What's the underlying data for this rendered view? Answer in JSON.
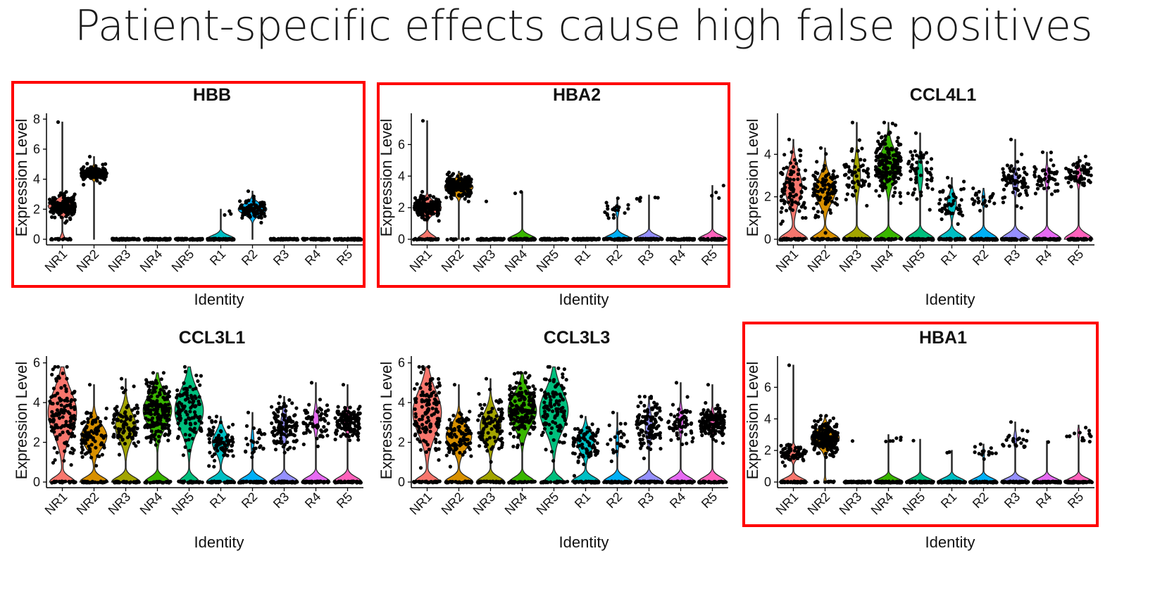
{
  "slide": {
    "title": "Patient-specific effects cause high false positives"
  },
  "colors": {
    "NR1": "#F8766D",
    "NR2": "#D89000",
    "NR3": "#A3A500",
    "NR4": "#39B600",
    "NR5": "#00BF7D",
    "R1": "#00BFC4",
    "R2": "#00B0F6",
    "R3": "#9590FF",
    "R4": "#E76BF3",
    "R5": "#FF62BC",
    "highlight": "#ff0000",
    "points": "#000000"
  },
  "chart_data": [
    {
      "type": "violin",
      "title": "HBB",
      "xlabel": "Identity",
      "ylabel": "Expression Level",
      "ylim": [
        0,
        8.2
      ],
      "yticks": [
        0,
        2,
        4,
        6,
        8
      ],
      "highlighted": true,
      "categories": [
        "NR1",
        "NR2",
        "NR3",
        "NR4",
        "NR5",
        "R1",
        "R2",
        "R3",
        "R4",
        "R5"
      ],
      "groups": [
        {
          "name": "NR1",
          "zero_frac": 0.1,
          "nz_mean": 2.2,
          "nz_sd": 0.35,
          "max": 7.8,
          "n_nz": 180
        },
        {
          "name": "NR2",
          "zero_frac": 0.0,
          "nz_mean": 4.4,
          "nz_sd": 0.22,
          "max": 5.5,
          "n_nz": 180
        },
        {
          "name": "NR3",
          "zero_frac": 1.0,
          "nz_mean": 0,
          "nz_sd": 0,
          "max": 0,
          "n_nz": 0
        },
        {
          "name": "NR4",
          "zero_frac": 1.0,
          "nz_mean": 0,
          "nz_sd": 0,
          "max": 0,
          "n_nz": 0
        },
        {
          "name": "NR5",
          "zero_frac": 1.0,
          "nz_mean": 0,
          "nz_sd": 0,
          "max": 0,
          "n_nz": 0
        },
        {
          "name": "R1",
          "zero_frac": 0.98,
          "nz_mean": 1.7,
          "nz_sd": 0.2,
          "max": 2.0,
          "n_nz": 3
        },
        {
          "name": "R2",
          "zero_frac": 0.0,
          "nz_mean": 2.0,
          "nz_sd": 0.35,
          "max": 3.2,
          "n_nz": 90
        },
        {
          "name": "R3",
          "zero_frac": 1.0,
          "nz_mean": 0,
          "nz_sd": 0,
          "max": 0,
          "n_nz": 0
        },
        {
          "name": "R4",
          "zero_frac": 1.0,
          "nz_mean": 0,
          "nz_sd": 0,
          "max": 0,
          "n_nz": 0
        },
        {
          "name": "R5",
          "zero_frac": 1.0,
          "nz_mean": 0,
          "nz_sd": 0,
          "max": 0,
          "n_nz": 0
        }
      ]
    },
    {
      "type": "violin",
      "title": "HBA2",
      "xlabel": "Identity",
      "ylabel": "Expression Level",
      "ylim": [
        0,
        7.8
      ],
      "yticks": [
        0,
        2,
        4,
        6
      ],
      "highlighted": true,
      "categories": [
        "NR1",
        "NR2",
        "NR3",
        "NR4",
        "NR5",
        "R1",
        "R2",
        "R3",
        "R4",
        "R5"
      ],
      "groups": [
        {
          "name": "NR1",
          "zero_frac": 0.3,
          "nz_mean": 2.0,
          "nz_sd": 0.35,
          "max": 7.5,
          "n_nz": 150
        },
        {
          "name": "NR2",
          "zero_frac": 0.02,
          "nz_mean": 3.3,
          "nz_sd": 0.35,
          "max": 4.3,
          "n_nz": 180
        },
        {
          "name": "NR3",
          "zero_frac": 1.0,
          "nz_mean": 0,
          "nz_sd": 0,
          "max": 2.4,
          "n_nz": 0
        },
        {
          "name": "NR4",
          "zero_frac": 0.98,
          "nz_mean": 2.9,
          "nz_sd": 0.05,
          "max": 3.0,
          "n_nz": 2
        },
        {
          "name": "NR5",
          "zero_frac": 1.0,
          "nz_mean": 0,
          "nz_sd": 0,
          "max": 0,
          "n_nz": 0
        },
        {
          "name": "R1",
          "zero_frac": 1.0,
          "nz_mean": 0,
          "nz_sd": 0,
          "max": 0,
          "n_nz": 0
        },
        {
          "name": "R2",
          "zero_frac": 0.85,
          "nz_mean": 1.8,
          "nz_sd": 0.3,
          "max": 2.6,
          "n_nz": 20
        },
        {
          "name": "R3",
          "zero_frac": 0.95,
          "nz_mean": 2.6,
          "nz_sd": 0.1,
          "max": 2.8,
          "n_nz": 6
        },
        {
          "name": "R4",
          "zero_frac": 1.0,
          "nz_mean": 0,
          "nz_sd": 0,
          "max": 0,
          "n_nz": 0
        },
        {
          "name": "R5",
          "zero_frac": 0.96,
          "nz_mean": 3.0,
          "nz_sd": 0.25,
          "max": 3.4,
          "n_nz": 4
        }
      ]
    },
    {
      "type": "violin",
      "title": "CCL4L1",
      "xlabel": "Identity",
      "ylabel": "Expression Level",
      "ylim": [
        0,
        5.8
      ],
      "yticks": [
        0,
        2,
        4
      ],
      "highlighted": false,
      "categories": [
        "NR1",
        "NR2",
        "NR3",
        "NR4",
        "NR5",
        "R1",
        "R2",
        "R3",
        "R4",
        "R5"
      ],
      "groups": [
        {
          "name": "NR1",
          "zero_frac": 0.5,
          "nz_mean": 2.5,
          "nz_sd": 0.8,
          "max": 4.7,
          "n_nz": 90
        },
        {
          "name": "NR2",
          "zero_frac": 0.45,
          "nz_mean": 2.3,
          "nz_sd": 0.6,
          "max": 4.3,
          "n_nz": 100
        },
        {
          "name": "NR3",
          "zero_frac": 0.7,
          "nz_mean": 3.0,
          "nz_sd": 0.7,
          "max": 5.5,
          "n_nz": 60
        },
        {
          "name": "NR4",
          "zero_frac": 0.45,
          "nz_mean": 3.5,
          "nz_sd": 0.7,
          "max": 5.5,
          "n_nz": 180
        },
        {
          "name": "NR5",
          "zero_frac": 0.75,
          "nz_mean": 3.1,
          "nz_sd": 0.6,
          "max": 5.0,
          "n_nz": 55
        },
        {
          "name": "R1",
          "zero_frac": 0.65,
          "nz_mean": 1.7,
          "nz_sd": 0.4,
          "max": 2.9,
          "n_nz": 45
        },
        {
          "name": "R2",
          "zero_frac": 0.85,
          "nz_mean": 1.9,
          "nz_sd": 0.3,
          "max": 2.4,
          "n_nz": 25
        },
        {
          "name": "R3",
          "zero_frac": 0.75,
          "nz_mean": 2.7,
          "nz_sd": 0.4,
          "max": 4.7,
          "n_nz": 70
        },
        {
          "name": "R4",
          "zero_frac": 0.8,
          "nz_mean": 2.9,
          "nz_sd": 0.4,
          "max": 4.1,
          "n_nz": 50
        },
        {
          "name": "R5",
          "zero_frac": 0.75,
          "nz_mean": 3.0,
          "nz_sd": 0.35,
          "max": 3.9,
          "n_nz": 70
        }
      ]
    },
    {
      "type": "violin",
      "title": "CCL3L1",
      "xlabel": "Identity",
      "ylabel": "Expression Level",
      "ylim": [
        0,
        6.2
      ],
      "yticks": [
        0,
        2,
        4,
        6
      ],
      "highlighted": false,
      "categories": [
        "NR1",
        "NR2",
        "NR3",
        "NR4",
        "NR5",
        "R1",
        "R2",
        "R3",
        "R4",
        "R5"
      ],
      "groups": [
        {
          "name": "NR1",
          "zero_frac": 0.35,
          "nz_mean": 3.5,
          "nz_sd": 1.1,
          "max": 5.8,
          "n_nz": 130
        },
        {
          "name": "NR2",
          "zero_frac": 0.4,
          "nz_mean": 2.3,
          "nz_sd": 0.6,
          "max": 4.9,
          "n_nz": 90
        },
        {
          "name": "NR3",
          "zero_frac": 0.45,
          "nz_mean": 2.8,
          "nz_sd": 0.7,
          "max": 5.2,
          "n_nz": 90
        },
        {
          "name": "NR4",
          "zero_frac": 0.35,
          "nz_mean": 3.6,
          "nz_sd": 0.8,
          "max": 5.5,
          "n_nz": 180
        },
        {
          "name": "NR5",
          "zero_frac": 0.3,
          "nz_mean": 3.6,
          "nz_sd": 1.0,
          "max": 5.8,
          "n_nz": 110
        },
        {
          "name": "R1",
          "zero_frac": 0.5,
          "nz_mean": 2.0,
          "nz_sd": 0.5,
          "max": 3.3,
          "n_nz": 80
        },
        {
          "name": "R2",
          "zero_frac": 0.85,
          "nz_mean": 2.0,
          "nz_sd": 0.5,
          "max": 3.5,
          "n_nz": 25
        },
        {
          "name": "R3",
          "zero_frac": 0.7,
          "nz_mean": 2.8,
          "nz_sd": 0.6,
          "max": 4.3,
          "n_nz": 110
        },
        {
          "name": "R4",
          "zero_frac": 0.75,
          "nz_mean": 3.1,
          "nz_sd": 0.5,
          "max": 5.0,
          "n_nz": 60
        },
        {
          "name": "R5",
          "zero_frac": 0.7,
          "nz_mean": 3.0,
          "nz_sd": 0.4,
          "max": 4.9,
          "n_nz": 140
        }
      ]
    },
    {
      "type": "violin",
      "title": "CCL3L3",
      "xlabel": "Identity",
      "ylabel": "Expression Level",
      "ylim": [
        0,
        6.2
      ],
      "yticks": [
        0,
        2,
        4,
        6
      ],
      "highlighted": false,
      "categories": [
        "NR1",
        "NR2",
        "NR3",
        "NR4",
        "NR5",
        "R1",
        "R2",
        "R3",
        "R4",
        "R5"
      ],
      "groups": [
        {
          "name": "NR1",
          "zero_frac": 0.35,
          "nz_mean": 3.5,
          "nz_sd": 1.1,
          "max": 5.8,
          "n_nz": 130
        },
        {
          "name": "NR2",
          "zero_frac": 0.4,
          "nz_mean": 2.3,
          "nz_sd": 0.6,
          "max": 4.9,
          "n_nz": 90
        },
        {
          "name": "NR3",
          "zero_frac": 0.45,
          "nz_mean": 2.8,
          "nz_sd": 0.7,
          "max": 5.2,
          "n_nz": 90
        },
        {
          "name": "NR4",
          "zero_frac": 0.35,
          "nz_mean": 3.6,
          "nz_sd": 0.8,
          "max": 5.5,
          "n_nz": 180
        },
        {
          "name": "NR5",
          "zero_frac": 0.3,
          "nz_mean": 3.6,
          "nz_sd": 1.0,
          "max": 5.8,
          "n_nz": 110
        },
        {
          "name": "R1",
          "zero_frac": 0.5,
          "nz_mean": 2.0,
          "nz_sd": 0.5,
          "max": 3.3,
          "n_nz": 80
        },
        {
          "name": "R2",
          "zero_frac": 0.85,
          "nz_mean": 2.0,
          "nz_sd": 0.5,
          "max": 3.5,
          "n_nz": 25
        },
        {
          "name": "R3",
          "zero_frac": 0.7,
          "nz_mean": 2.8,
          "nz_sd": 0.6,
          "max": 4.3,
          "n_nz": 110
        },
        {
          "name": "R4",
          "zero_frac": 0.75,
          "nz_mean": 3.1,
          "nz_sd": 0.5,
          "max": 5.0,
          "n_nz": 60
        },
        {
          "name": "R5",
          "zero_frac": 0.7,
          "nz_mean": 3.0,
          "nz_sd": 0.4,
          "max": 4.9,
          "n_nz": 140
        }
      ]
    },
    {
      "type": "violin",
      "title": "HBA1",
      "xlabel": "Identity",
      "ylabel": "Expression Level",
      "ylim": [
        0,
        7.8
      ],
      "yticks": [
        0,
        2,
        4,
        6
      ],
      "highlighted": true,
      "categories": [
        "NR1",
        "NR2",
        "NR3",
        "NR4",
        "NR5",
        "R1",
        "R2",
        "R3",
        "R4",
        "R5"
      ],
      "groups": [
        {
          "name": "NR1",
          "zero_frac": 0.55,
          "nz_mean": 1.8,
          "nz_sd": 0.3,
          "max": 7.4,
          "n_nz": 60
        },
        {
          "name": "NR2",
          "zero_frac": 0.05,
          "nz_mean": 2.8,
          "nz_sd": 0.5,
          "max": 4.2,
          "n_nz": 200
        },
        {
          "name": "NR3",
          "zero_frac": 1.0,
          "nz_mean": 0,
          "nz_sd": 0,
          "max": 2.6,
          "n_nz": 0
        },
        {
          "name": "NR4",
          "zero_frac": 0.96,
          "nz_mean": 2.7,
          "nz_sd": 0.15,
          "max": 3.0,
          "n_nz": 6
        },
        {
          "name": "NR5",
          "zero_frac": 0.98,
          "nz_mean": 2.7,
          "nz_sd": 0.05,
          "max": 2.7,
          "n_nz": 1
        },
        {
          "name": "R1",
          "zero_frac": 0.98,
          "nz_mean": 1.9,
          "nz_sd": 0.05,
          "max": 2.0,
          "n_nz": 2
        },
        {
          "name": "R2",
          "zero_frac": 0.9,
          "nz_mean": 1.8,
          "nz_sd": 0.3,
          "max": 2.4,
          "n_nz": 15
        },
        {
          "name": "R3",
          "zero_frac": 0.85,
          "nz_mean": 2.7,
          "nz_sd": 0.4,
          "max": 3.8,
          "n_nz": 22
        },
        {
          "name": "R4",
          "zero_frac": 0.99,
          "nz_mean": 2.6,
          "nz_sd": 0.05,
          "max": 2.6,
          "n_nz": 1
        },
        {
          "name": "R5",
          "zero_frac": 0.9,
          "nz_mean": 3.1,
          "nz_sd": 0.3,
          "max": 3.6,
          "n_nz": 14
        }
      ]
    }
  ]
}
